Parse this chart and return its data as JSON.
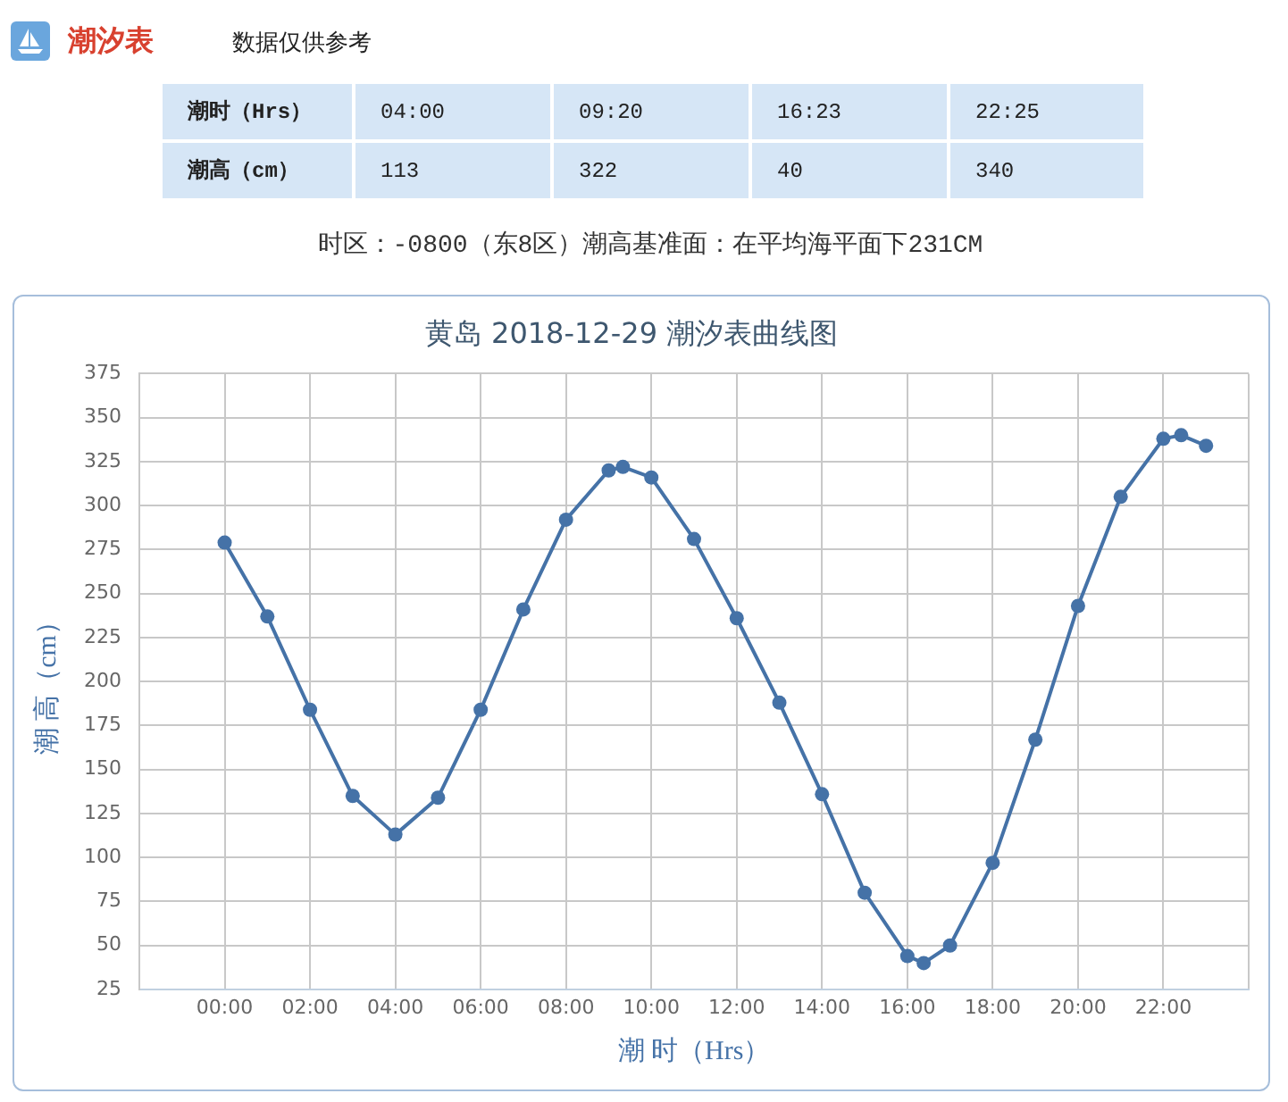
{
  "chart_data": {
    "type": "line",
    "title": "黄岛 2018-12-29 潮汐表曲线图",
    "xlabel": "潮 时（Hrs）",
    "ylabel": "潮 高（cm）",
    "annotations": [
      "潮汐表",
      "数据仅供参考",
      "潮时（Hrs）",
      "04:00",
      "09:20",
      "16:23",
      "22:25",
      "潮高（cm）",
      "113",
      "322",
      "40",
      "340",
      "时区：-0800（东8区）潮高基准面：在平均海平面下231CM"
    ],
    "x": [
      0,
      1,
      2,
      3,
      4,
      5,
      6,
      7,
      8,
      9,
      9.333,
      10,
      11,
      12,
      13,
      14,
      15,
      16,
      16.383,
      17,
      18,
      19,
      20,
      21,
      22,
      22.417,
      23
    ],
    "values": [
      279,
      237,
      184,
      135,
      113,
      134,
      184,
      241,
      292,
      320,
      322,
      316,
      281,
      236,
      188,
      136,
      80,
      44,
      40,
      50,
      97,
      167,
      243,
      305,
      338,
      340,
      334
    ],
    "color": "#4572a7",
    "xlim": [
      -2,
      24
    ],
    "xticks": [
      {
        "value": -2,
        "label": null
      },
      {
        "value": 0,
        "label": "00:00"
      },
      {
        "value": 2,
        "label": "02:00"
      },
      {
        "value": 4,
        "label": "04:00"
      },
      {
        "value": 6,
        "label": "06:00"
      },
      {
        "value": 8,
        "label": "08:00"
      },
      {
        "value": 10,
        "label": "10:00"
      },
      {
        "value": 12,
        "label": "12:00"
      },
      {
        "value": 14,
        "label": "14:00"
      },
      {
        "value": 16,
        "label": "16:00"
      },
      {
        "value": 18,
        "label": "18:00"
      },
      {
        "value": 20,
        "label": "20:00"
      },
      {
        "value": 22,
        "label": "22:00"
      },
      {
        "value": 24,
        "label": null
      }
    ],
    "ylim": [
      25,
      375
    ],
    "yticks": [
      25,
      50,
      75,
      100,
      125,
      150,
      175,
      200,
      225,
      250,
      275,
      300,
      325,
      350,
      375
    ],
    "grid": true,
    "marker": "circle",
    "line_style": "solid"
  }
}
